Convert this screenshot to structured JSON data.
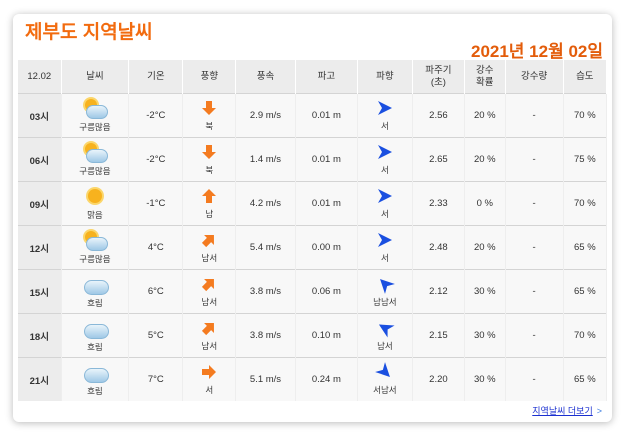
{
  "title": "제부도 지역날씨",
  "date": "2021년 12월 02일",
  "headers": [
    "12.02",
    "날씨",
    "기온",
    "풍향",
    "풍속",
    "파고",
    "파향",
    "파주기\n(초)",
    "강수\n확률",
    "강수량",
    "습도"
  ],
  "rows": [
    {
      "time": "03시",
      "weather": "구름많음",
      "icon": "partly-cloudy",
      "temp": "-2°C",
      "wind_dir": "북",
      "wind_speed": "2.9 m/s",
      "wave_height": "0.01 m",
      "wave_dir": "서",
      "wave_period": "2.56",
      "rain_prob": "20 %",
      "rain": "-",
      "humidity": "70 %"
    },
    {
      "time": "06시",
      "weather": "구름많음",
      "icon": "partly-cloudy",
      "temp": "-2°C",
      "wind_dir": "북",
      "wind_speed": "1.4 m/s",
      "wave_height": "0.01 m",
      "wave_dir": "서",
      "wave_period": "2.65",
      "rain_prob": "20 %",
      "rain": "-",
      "humidity": "75 %"
    },
    {
      "time": "09시",
      "weather": "맑음",
      "icon": "sunny",
      "temp": "-1°C",
      "wind_dir": "남",
      "wind_speed": "4.2 m/s",
      "wave_height": "0.01 m",
      "wave_dir": "서",
      "wave_period": "2.33",
      "rain_prob": "0 %",
      "rain": "-",
      "humidity": "70 %"
    },
    {
      "time": "12시",
      "weather": "구름많음",
      "icon": "partly-cloudy",
      "temp": "4°C",
      "wind_dir": "남서",
      "wind_speed": "5.4 m/s",
      "wave_height": "0.00 m",
      "wave_dir": "서",
      "wave_period": "2.48",
      "rain_prob": "20 %",
      "rain": "-",
      "humidity": "65 %"
    },
    {
      "time": "15시",
      "weather": "흐림",
      "icon": "cloudy",
      "temp": "6°C",
      "wind_dir": "남서",
      "wind_speed": "3.8 m/s",
      "wave_height": "0.06 m",
      "wave_dir": "남남서",
      "wave_period": "2.12",
      "rain_prob": "30 %",
      "rain": "-",
      "humidity": "65 %"
    },
    {
      "time": "18시",
      "weather": "흐림",
      "icon": "cloudy",
      "temp": "5°C",
      "wind_dir": "남서",
      "wind_speed": "3.8 m/s",
      "wave_height": "0.10 m",
      "wave_dir": "남서",
      "wave_period": "2.15",
      "rain_prob": "30 %",
      "rain": "-",
      "humidity": "70 %"
    },
    {
      "time": "21시",
      "weather": "흐림",
      "icon": "cloudy",
      "temp": "7°C",
      "wind_dir": "서",
      "wind_speed": "5.1 m/s",
      "wave_height": "0.24 m",
      "wave_dir": "서남서",
      "wave_period": "2.20",
      "rain_prob": "30 %",
      "rain": "-",
      "humidity": "65 %"
    }
  ],
  "more_link": "지역날씨 더보기",
  "colors": {
    "accent": "#f26b0f",
    "wind_arrow": "#f47b20",
    "wave_arrow": "#1a4fe0"
  }
}
